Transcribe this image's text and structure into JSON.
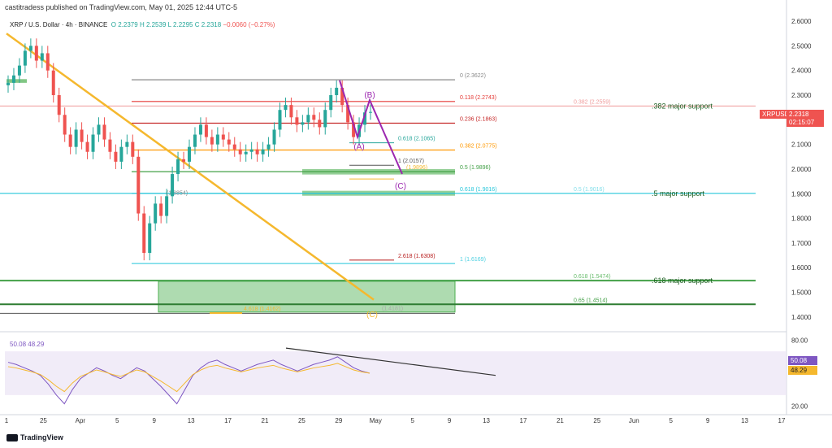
{
  "header": {
    "published": "castitradess published on TradingView.com, May 01, 2025 12:44 UTC-5",
    "symbol_desc": "XRP / U.S. Dollar · 4h · BINANCE",
    "ohlc": {
      "o": "O 2.2379",
      "h": "H 2.2539",
      "l": "L 2.2295",
      "c": "C 2.2318",
      "chg": "−0.0060 (−0.27%)"
    }
  },
  "price_tag": {
    "symbol": "XRPUSD",
    "price": "2.2318",
    "timer": "02:15:07"
  },
  "rsi_tags": {
    "rsi": "50.08",
    "ma": "48.29"
  },
  "brand": "TradingView",
  "colors": {
    "up": "#26a69a",
    "down": "#ef5350",
    "trend": "#f5b82e",
    "wave": "#9c27b0",
    "green_zone": "#4caf50",
    "blue_level": "#4dd0e1",
    "rsi": "#7e57c2",
    "rsi_ma": "#f5b82e"
  },
  "chart_data": {
    "type": "candlestick",
    "ylim": [
      1.36,
      2.62
    ],
    "yticks": [
      "2.6000",
      "2.5000",
      "2.4000",
      "2.3000",
      "2.2000",
      "2.1000",
      "2.0000",
      "1.9000",
      "1.8000",
      "1.7000",
      "1.6000",
      "1.5000",
      "1.4000"
    ],
    "xticks": [
      "1",
      "25",
      "Apr",
      "5",
      "9",
      "13",
      "17",
      "21",
      "25",
      "29",
      "May",
      "5",
      "9",
      "13",
      "17",
      "21",
      "25",
      "Jun",
      "5",
      "9",
      "13",
      "17"
    ],
    "close_path": [
      2.35,
      2.38,
      2.42,
      2.48,
      2.5,
      2.44,
      2.47,
      2.4,
      2.3,
      2.22,
      2.14,
      2.09,
      2.16,
      2.11,
      2.07,
      2.14,
      2.18,
      2.12,
      2.07,
      2.03,
      2.09,
      2.11,
      2.05,
      1.82,
      1.66,
      1.78,
      1.86,
      1.81,
      1.89,
      1.98,
      2.04,
      2.03,
      2.09,
      2.14,
      2.18,
      2.13,
      2.1,
      2.14,
      2.12,
      2.1,
      2.08,
      2.06,
      2.07,
      2.08,
      2.06,
      2.08,
      2.1,
      2.16,
      2.24,
      2.26,
      2.21,
      2.18,
      2.19,
      2.22,
      2.2,
      2.17,
      2.24,
      2.3,
      2.33,
      2.26,
      2.19,
      2.13,
      2.18,
      2.23,
      2.2318
    ],
    "fib_levels": [
      {
        "label": "0 (2.3622)",
        "value": 2.3622,
        "color": "#888888"
      },
      {
        "label": "0.118 (2.2743)",
        "value": 2.2743,
        "color": "#e53935"
      },
      {
        "label": "0.236 (2.1863)",
        "value": 2.1863,
        "color": "#c62828"
      },
      {
        "label": "0.382 (2.0775)",
        "value": 2.0775,
        "color": "#ff9800"
      },
      {
        "label": "0.5 (1.9896)",
        "value": 1.9896,
        "color": "#43a047"
      },
      {
        "label": "0.618 (1.9016)",
        "value": 1.9016,
        "color": "#26c6da"
      },
      {
        "label": "1 (1.6169)",
        "value": 1.6169,
        "color": "#4dd0e1"
      }
    ],
    "extra_labels": [
      {
        "text": "0.618 (2.1065)",
        "value": 2.1065,
        "color": "#26a69a"
      },
      {
        "text": "1 (2.0157)",
        "value": 2.0157,
        "color": "#555555"
      },
      {
        "text": "2.618 (1.6308)",
        "value": 1.6308,
        "color": "#b71c1c"
      },
      {
        "text": "(1.8854)",
        "value": 1.8854,
        "color": "#888888"
      },
      {
        "text": "0.382 (2.2559)",
        "value": 2.2559,
        "color": "#ef9a9a"
      },
      {
        "text": "0.5 (1.9016)",
        "value": 1.9016,
        "color": "#80deea"
      },
      {
        "text": "0.618 (1.5474)",
        "value": 1.5474,
        "color": "#66bb6a"
      },
      {
        "text": "0.65 (1.4514)",
        "value": 1.4514,
        "color": "#43a047"
      },
      {
        "text": "4.618 (1.4162)",
        "value": 1.4162,
        "color": "#f5b82e"
      },
      {
        "text": "(1.4181)",
        "value": 1.4181,
        "color": "#aaaaaa"
      },
      {
        "text": "(1.9896)",
        "value": 1.9896,
        "color": "#f5b82e"
      }
    ],
    "support_notes": [
      {
        "text": ".382 major support",
        "value": 2.2559
      },
      {
        "text": ".5 major support",
        "value": 1.9016
      },
      {
        "text": ".618 major support",
        "value": 1.5474
      }
    ],
    "waves": [
      {
        "label": "(B)",
        "value": 2.29
      },
      {
        "label": "(A)",
        "value": 2.08
      },
      {
        "label": "(C)",
        "value": 1.92
      },
      {
        "label": "(C)",
        "value": 1.4
      }
    ],
    "rsi": {
      "ylim": [
        15,
        85
      ],
      "yticks": [
        "80.00",
        "20.00"
      ],
      "band": [
        70,
        30
      ],
      "last": 50.08,
      "ma": 48.29,
      "legend": "50.08  48.29"
    }
  }
}
